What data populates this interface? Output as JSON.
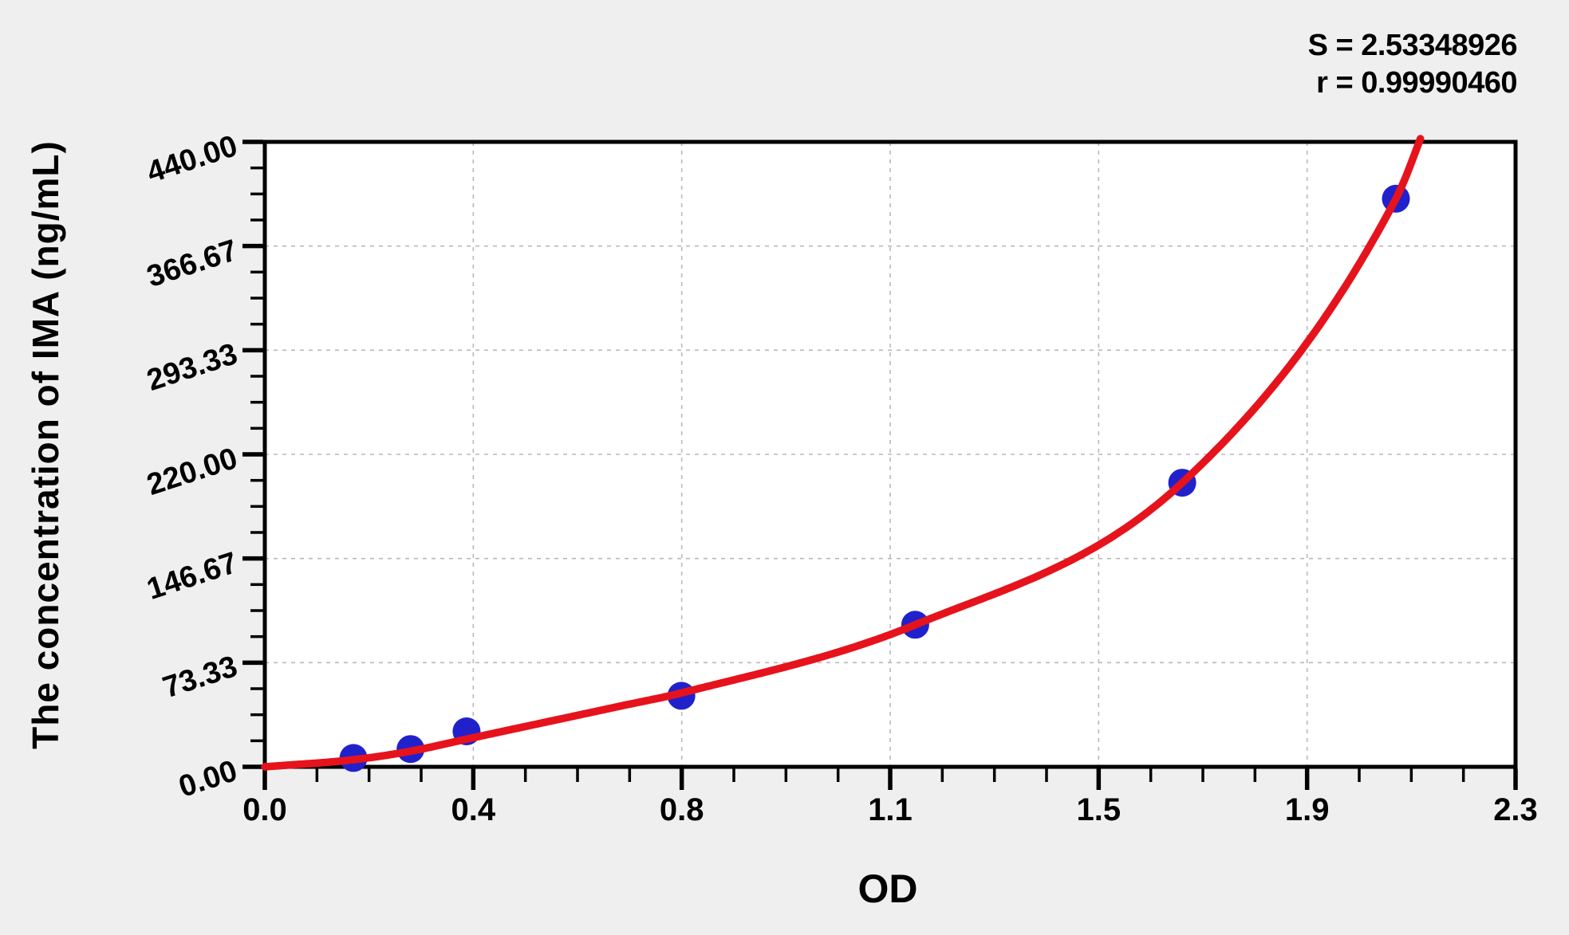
{
  "stats": {
    "s_label": "S = 2.53348926",
    "r_label": "r = 0.99990460"
  },
  "chart_data": {
    "type": "scatter",
    "title": "",
    "xlabel": "OD",
    "ylabel": "The concentration of IMA (ng/mL)",
    "xlim": [
      0,
      2.3
    ],
    "ylim": [
      0,
      440
    ],
    "x_tick_labels": [
      "0.0",
      "0.4",
      "0.8",
      "1.1",
      "1.5",
      "1.9",
      "2.3"
    ],
    "y_tick_labels": [
      "0.00",
      "73.33",
      "146.67",
      "220.00",
      "293.33",
      "366.67",
      "440.00"
    ],
    "minor_ticks_per_interval": 3,
    "grid": "dashed gridlines at major ticks, plot framed on all sides",
    "legend_position": "none",
    "annotations": [
      "S = 2.53348926",
      "r = 0.99990460"
    ],
    "series": [
      {
        "name": "standard-points",
        "type": "scatter",
        "marker": "filled-circle",
        "color": "#2121cc",
        "points": [
          [
            0.163,
            6.25
          ],
          [
            0.268,
            12.5
          ],
          [
            0.371,
            25
          ],
          [
            0.766,
            50
          ],
          [
            1.196,
            100
          ],
          [
            1.687,
            200
          ],
          [
            2.08,
            400
          ]
        ]
      },
      {
        "name": "fit-curve",
        "type": "line",
        "color": "#e6131c",
        "anchors": [
          [
            0,
            0
          ],
          [
            0.163,
            5
          ],
          [
            0.268,
            11
          ],
          [
            0.371,
            19.5
          ],
          [
            0.657,
            43
          ],
          [
            0.766,
            52
          ],
          [
            1.196,
            100
          ],
          [
            1.687,
            200
          ],
          [
            2.08,
            400
          ],
          [
            2.135,
            452
          ]
        ]
      }
    ]
  },
  "colors": {
    "page_background": "#efefef",
    "plot_background": "#ffffff",
    "frame": "#000000",
    "gridline": "#b9b9b9",
    "point": "#2121cc",
    "curve": "#e6131c",
    "text": "#000000"
  }
}
